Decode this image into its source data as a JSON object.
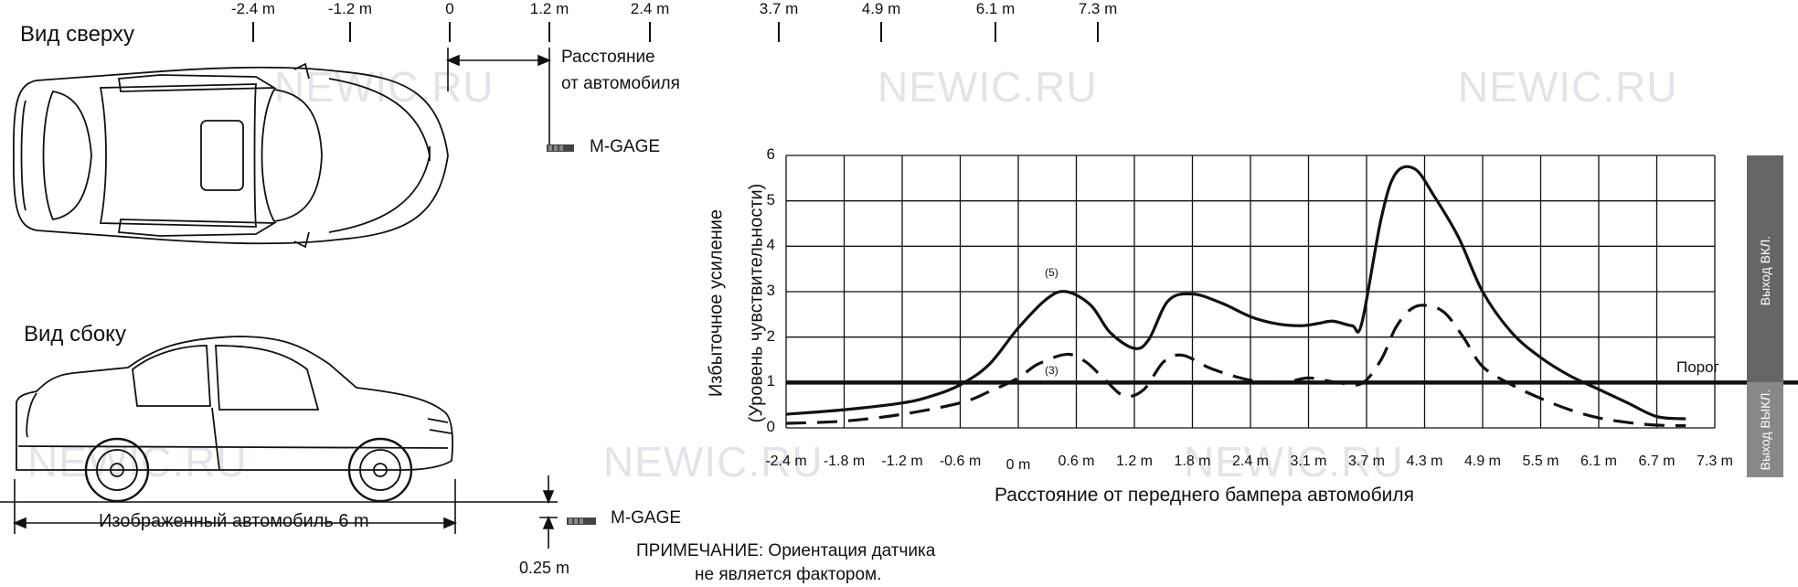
{
  "top_view": {
    "title": "Вид сверху",
    "scale_labels": [
      "-2.4 m",
      "-1.2 m",
      "0",
      "1.2 m",
      "2.4 m",
      "3.7 m",
      "4.9 m",
      "6.1 m",
      "7.3 m"
    ],
    "distance_label_line1": "Расстояние",
    "distance_label_line2": "от автомобиля",
    "sensor_label": "M-GAGE"
  },
  "side_view": {
    "title": "Вид сбоку",
    "car_length_label": "Изображенный автомобиль 6 m",
    "sensor_label": "M-GAGE",
    "height_label": "0.25 m"
  },
  "note": {
    "line1": "ПРИМЕЧАНИЕ: Ориентация датчика",
    "line2": "не является фактором."
  },
  "watermark": "NEWIC.RU",
  "chart_data": {
    "type": "line",
    "xlabel": "Расстояние от переднего бампера автомобиля",
    "ylabel_line1": "Избыточное усиление",
    "ylabel_line2": "(Уровень чувствительности)",
    "x_tick_labels": [
      "-2.4 m",
      "-1.8 m",
      "-1.2 m",
      "-0.6 m",
      "0 m",
      "0.6 m",
      "1.2 m",
      "1.8 m",
      "2.4 m",
      "3.1 m",
      "3.7 m",
      "4.3 m",
      "4.9 m",
      "5.5 m",
      "6.1 m",
      "6.7 m",
      "7.3 m"
    ],
    "x_tick_values": [
      -2.4,
      -1.8,
      -1.2,
      -0.6,
      0,
      0.6,
      1.2,
      1.8,
      2.4,
      3.1,
      3.7,
      4.3,
      4.9,
      5.5,
      6.1,
      6.7,
      7.3
    ],
    "y_ticks": [
      0,
      1,
      2,
      3,
      4,
      5,
      6
    ],
    "xlim": [
      -2.4,
      7.3
    ],
    "ylim": [
      0,
      6
    ],
    "grid": true,
    "threshold": {
      "value": 1,
      "label": "Порог"
    },
    "zone_labels": {
      "on": "Выход ВКЛ.",
      "off": "Выход ВЫКЛ."
    },
    "series": [
      {
        "name": "",
        "marker_label": "(5)",
        "style": "solid",
        "x": [
          -2.4,
          -1.8,
          -1.2,
          -0.9,
          -0.6,
          -0.3,
          0,
          0.3,
          0.5,
          0.75,
          0.95,
          1.2,
          1.35,
          1.55,
          1.8,
          2.1,
          2.4,
          2.7,
          3.0,
          3.2,
          3.35,
          3.55,
          3.65,
          3.85,
          4.0,
          4.2,
          4.4,
          4.65,
          4.9,
          5.2,
          5.5,
          5.8,
          6.1,
          6.4,
          6.7,
          7.0
        ],
        "y": [
          0.3,
          0.4,
          0.55,
          0.7,
          0.95,
          1.4,
          2.2,
          2.85,
          3.0,
          2.7,
          2.1,
          1.75,
          1.95,
          2.8,
          2.95,
          2.75,
          2.45,
          2.3,
          2.25,
          2.3,
          2.35,
          2.25,
          2.3,
          4.6,
          5.6,
          5.7,
          5.1,
          4.2,
          3.0,
          2.1,
          1.55,
          1.15,
          0.85,
          0.55,
          0.25,
          0.2
        ]
      },
      {
        "name": "",
        "marker_label": "(3)",
        "style": "dashed",
        "x": [
          -2.4,
          -1.8,
          -1.2,
          -0.6,
          -0.3,
          0,
          0.2,
          0.5,
          0.7,
          0.9,
          1.1,
          1.3,
          1.5,
          1.7,
          2.0,
          2.4,
          2.8,
          3.1,
          3.4,
          3.65,
          3.85,
          4.0,
          4.15,
          4.3,
          4.5,
          4.7,
          4.9,
          5.2,
          5.5,
          5.8,
          6.1,
          6.4,
          6.7,
          7.0
        ],
        "y": [
          0.1,
          0.15,
          0.3,
          0.55,
          0.8,
          1.1,
          1.4,
          1.62,
          1.45,
          1.05,
          0.7,
          0.85,
          1.45,
          1.6,
          1.3,
          1.05,
          1.0,
          1.1,
          1.0,
          0.98,
          1.5,
          2.2,
          2.6,
          2.7,
          2.55,
          2.0,
          1.35,
          0.95,
          0.65,
          0.4,
          0.22,
          0.12,
          0.06,
          0.05
        ]
      }
    ]
  }
}
